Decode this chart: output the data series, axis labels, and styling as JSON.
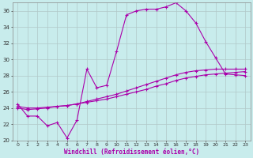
{
  "xlabel": "Windchill (Refroidissement éolien,°C)",
  "bg_color": "#c8ecec",
  "grid_color": "#b0c8c8",
  "line_color": "#aa00aa",
  "xlim": [
    -0.5,
    23.5
  ],
  "ylim": [
    20,
    37
  ],
  "xticks": [
    0,
    1,
    2,
    3,
    4,
    5,
    6,
    7,
    8,
    9,
    10,
    11,
    12,
    13,
    14,
    15,
    16,
    17,
    18,
    19,
    20,
    21,
    22,
    23
  ],
  "yticks": [
    20,
    22,
    24,
    26,
    28,
    30,
    32,
    34,
    36
  ],
  "line1_x": [
    0,
    1,
    2,
    3,
    4,
    5,
    6,
    7,
    8,
    9,
    10,
    11,
    12,
    13,
    14,
    15,
    16,
    17,
    18,
    19,
    20,
    21,
    22,
    23
  ],
  "line1_y": [
    24.5,
    23.0,
    23.0,
    21.8,
    22.2,
    20.3,
    22.5,
    28.8,
    26.5,
    26.8,
    31.0,
    35.5,
    36.0,
    36.2,
    36.2,
    36.5,
    37.0,
    36.0,
    34.5,
    32.2,
    30.2,
    28.2,
    28.1,
    28.0
  ],
  "line2_x": [
    0,
    1,
    2,
    3,
    4,
    5,
    6,
    7,
    8,
    9,
    10,
    11,
    12,
    13,
    14,
    15,
    16,
    17,
    18,
    19,
    20,
    21,
    22,
    23
  ],
  "line2_y": [
    24.0,
    23.8,
    23.9,
    24.0,
    24.2,
    24.3,
    24.5,
    24.7,
    24.9,
    25.1,
    25.4,
    25.7,
    26.0,
    26.3,
    26.7,
    27.0,
    27.4,
    27.7,
    27.9,
    28.1,
    28.2,
    28.3,
    28.4,
    28.5
  ],
  "line3_x": [
    0,
    1,
    2,
    3,
    4,
    5,
    6,
    7,
    8,
    9,
    10,
    11,
    12,
    13,
    14,
    15,
    16,
    17,
    18,
    19,
    20,
    21,
    22,
    23
  ],
  "line3_y": [
    24.2,
    24.0,
    24.0,
    24.1,
    24.2,
    24.3,
    24.5,
    24.8,
    25.1,
    25.4,
    25.7,
    26.1,
    26.5,
    26.9,
    27.3,
    27.7,
    28.1,
    28.4,
    28.6,
    28.7,
    28.8,
    28.8,
    28.8,
    28.8
  ]
}
